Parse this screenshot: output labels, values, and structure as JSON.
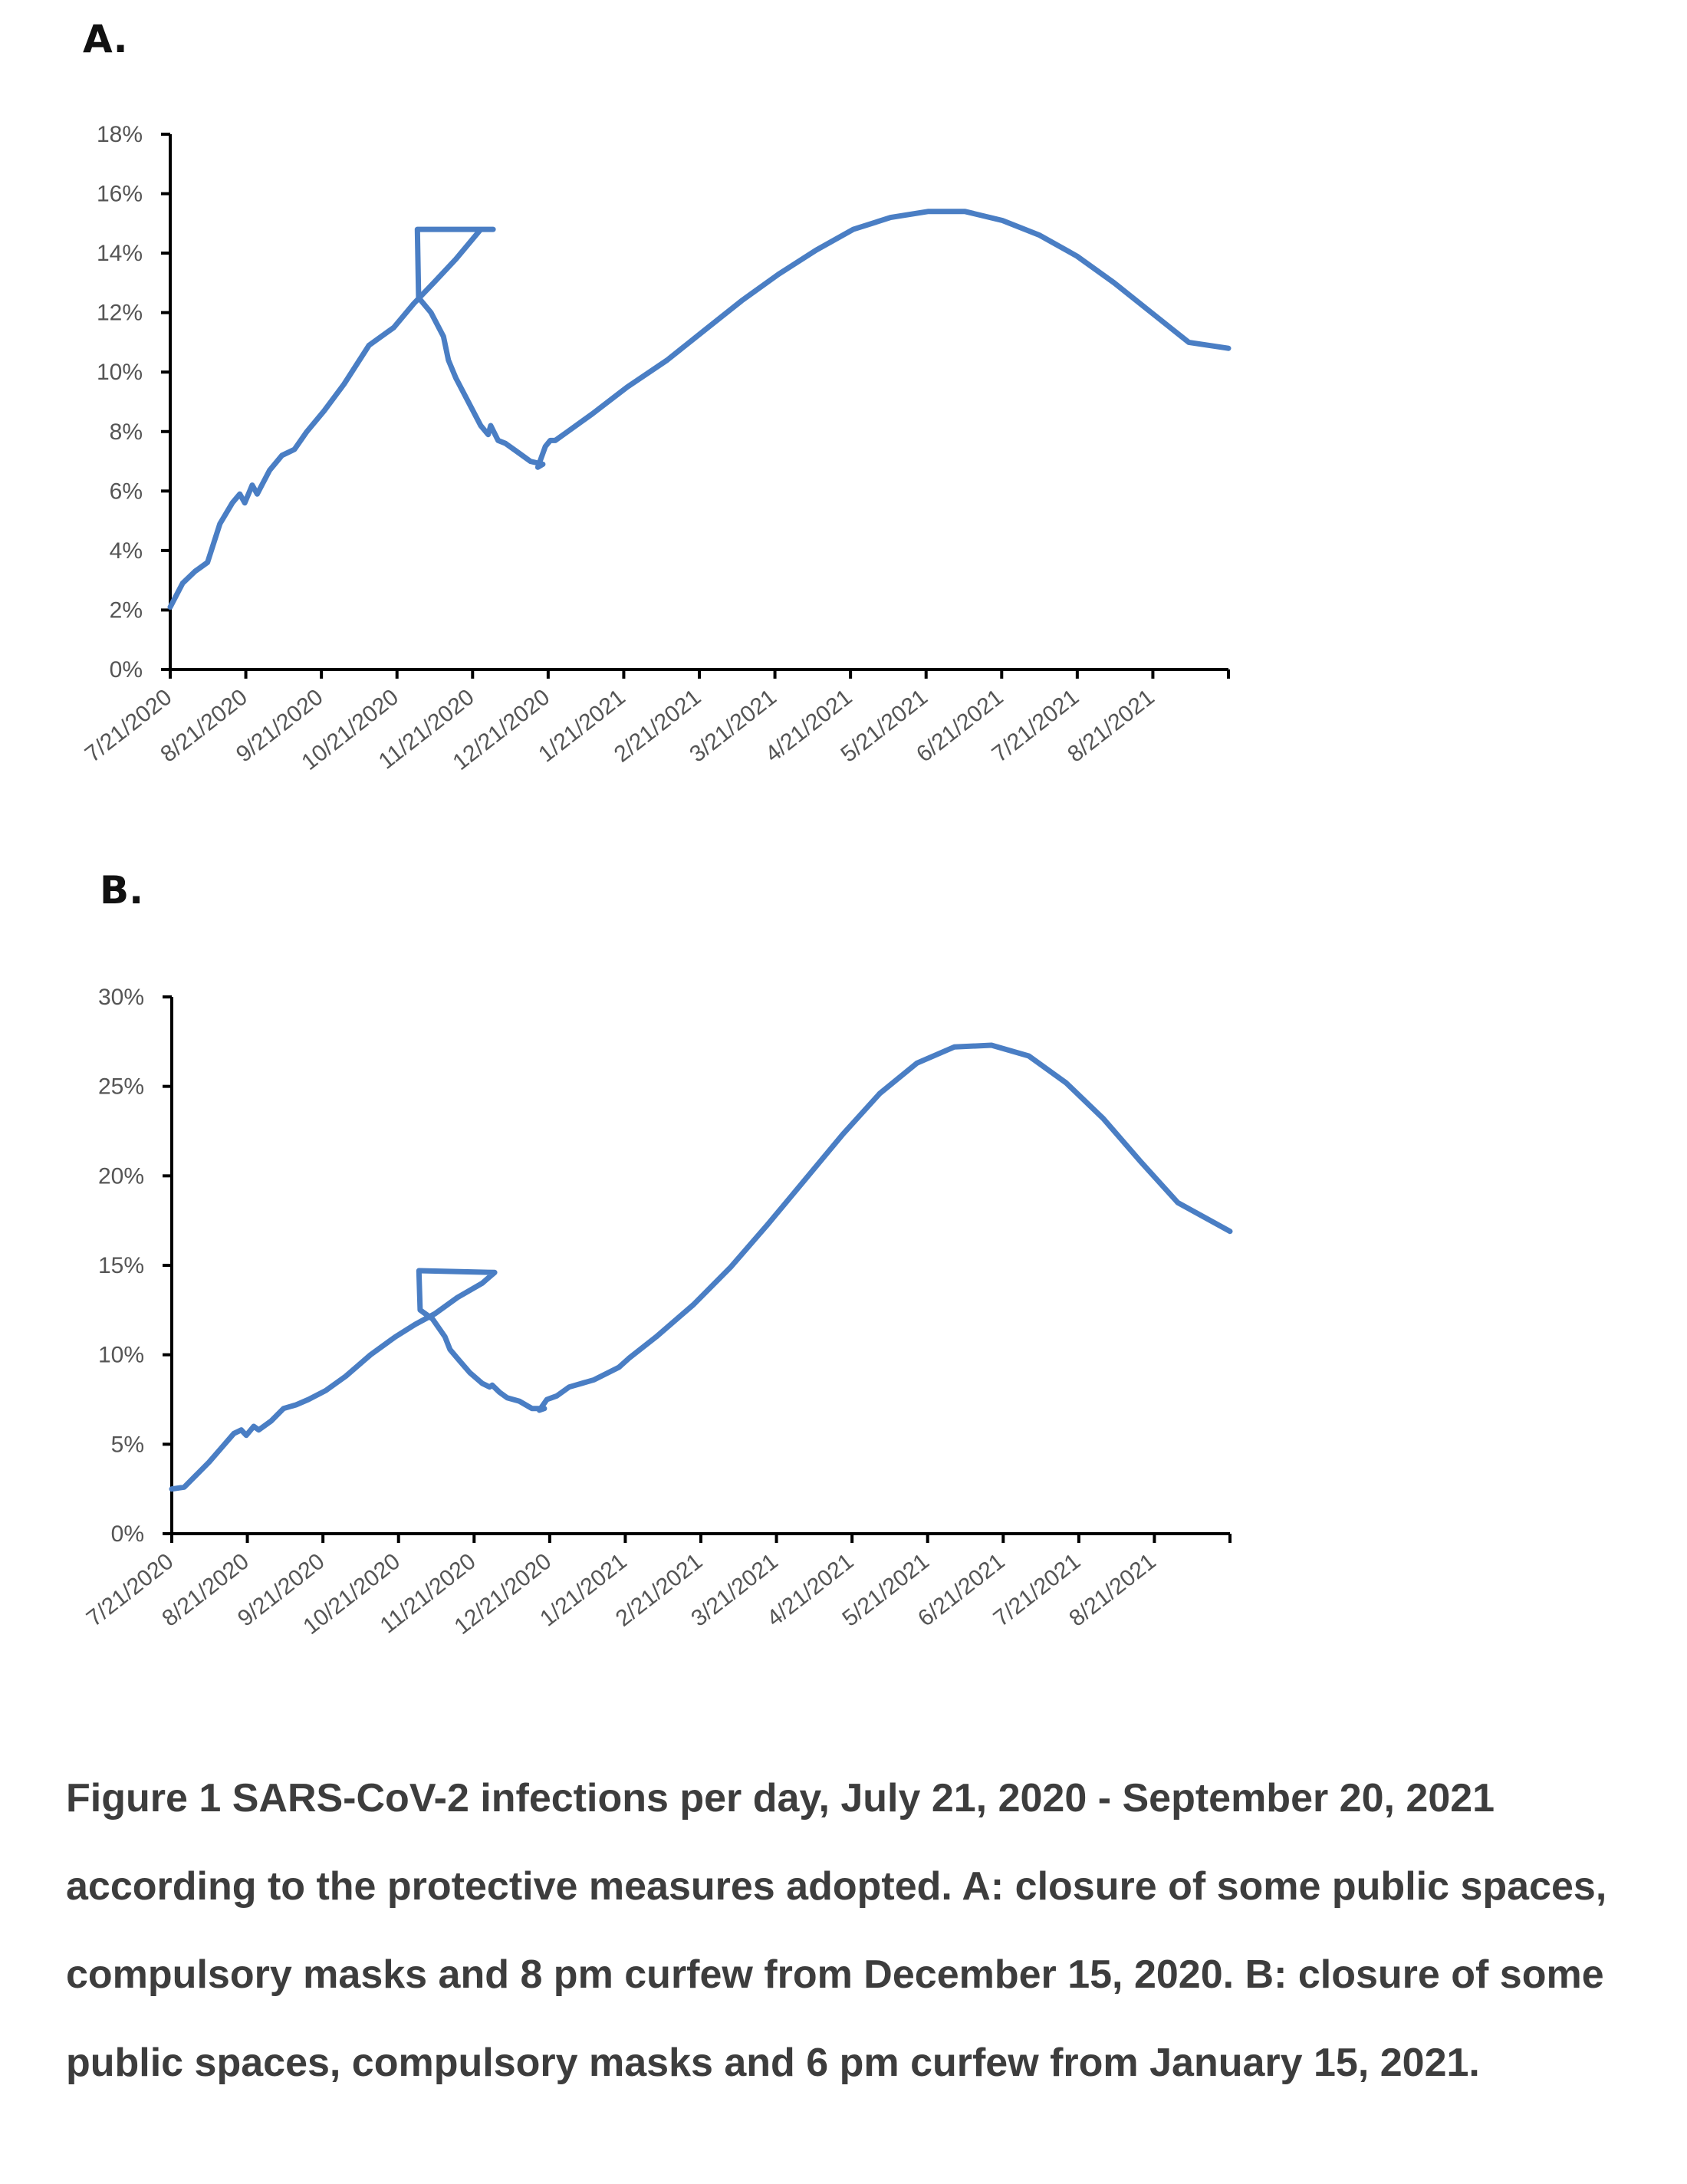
{
  "chart_data": [
    {
      "type": "line",
      "panel_label": "A.",
      "title": "",
      "xlabel": "",
      "ylabel": "",
      "ylim": [
        0,
        18
      ],
      "y_ticks": [
        "0%",
        "2%",
        "4%",
        "6%",
        "8%",
        "10%",
        "12%",
        "14%",
        "16%",
        "18%"
      ],
      "x_ticks": [
        "7/21/2020",
        "8/21/2020",
        "9/21/2020",
        "10/21/2020",
        "11/21/2020",
        "12/21/2020",
        "1/21/2021",
        "2/21/2021",
        "3/21/2021",
        "4/21/2021",
        "5/21/2021",
        "6/21/2021",
        "7/21/2021",
        "8/21/2021"
      ],
      "x_unit": "days since 7/21/2020",
      "xlim": [
        0,
        426
      ],
      "grid": false,
      "series": [
        {
          "name": "Infections per day (%)",
          "color": "#4a7ec4",
          "x": [
            0,
            5,
            10,
            15,
            20,
            25,
            28,
            30,
            33,
            35,
            40,
            45,
            50,
            55,
            62,
            70,
            80,
            90,
            98,
            106,
            115,
            125,
            130,
            99.5,
            100,
            102,
            105,
            110,
            112,
            115,
            120,
            125,
            128,
            129,
            132,
            135,
            140,
            145,
            150,
            148,
            151,
            153,
            155,
            160,
            170,
            184,
            200,
            215,
            230,
            245,
            260,
            275,
            290,
            305,
            320,
            335,
            350,
            365,
            380,
            395,
            410,
            426
          ],
          "y": [
            2.1,
            2.9,
            3.3,
            3.6,
            4.9,
            5.6,
            5.9,
            5.6,
            6.2,
            5.9,
            6.7,
            7.2,
            7.4,
            8.0,
            8.7,
            9.6,
            10.9,
            11.5,
            12.3,
            13.0,
            13.8,
            14.8,
            14.8,
            14.8,
            12.5,
            12.3,
            12.0,
            11.2,
            10.4,
            9.8,
            9.0,
            8.2,
            7.9,
            8.2,
            7.7,
            7.6,
            7.3,
            7.0,
            6.9,
            6.8,
            7.5,
            7.7,
            7.7,
            8.0,
            8.6,
            9.5,
            10.4,
            11.4,
            12.4,
            13.3,
            14.1,
            14.8,
            15.2,
            15.4,
            15.4,
            15.1,
            14.6,
            13.9,
            13.0,
            12.0,
            11.0,
            10.8
          ]
        }
      ]
    },
    {
      "type": "line",
      "panel_label": "B.",
      "title": "",
      "xlabel": "",
      "ylabel": "",
      "ylim": [
        0,
        30
      ],
      "y_ticks": [
        "0%",
        "5%",
        "10%",
        "15%",
        "20%",
        "25%",
        "30%"
      ],
      "x_ticks": [
        "7/21/2020",
        "8/21/2020",
        "9/21/2020",
        "10/21/2020",
        "11/21/2020",
        "12/21/2020",
        "1/21/2021",
        "2/21/2021",
        "3/21/2021",
        "4/21/2021",
        "5/21/2021",
        "6/21/2021",
        "7/21/2021",
        "8/21/2021"
      ],
      "x_unit": "days since 7/21/2020",
      "xlim": [
        0,
        426
      ],
      "grid": false,
      "series": [
        {
          "name": "Infections per day (%)",
          "color": "#4a7ec4",
          "x": [
            0,
            5,
            10,
            15,
            20,
            25,
            28,
            30,
            33,
            35,
            40,
            45,
            50,
            55,
            62,
            70,
            80,
            90,
            98,
            106,
            115,
            125,
            130,
            99.5,
            100,
            102,
            105,
            110,
            112,
            115,
            120,
            125,
            128,
            129,
            132,
            135,
            140,
            145,
            150,
            148,
            151,
            153,
            155,
            160,
            170,
            180,
            184,
            195,
            210,
            225,
            240,
            255,
            270,
            285,
            300,
            315,
            330,
            345,
            360,
            375,
            390,
            405,
            426
          ],
          "y": [
            2.5,
            2.6,
            3.3,
            4.0,
            4.8,
            5.6,
            5.8,
            5.5,
            6.0,
            5.8,
            6.3,
            7.0,
            7.2,
            7.5,
            8.0,
            8.8,
            10.0,
            11.0,
            11.7,
            12.3,
            13.2,
            14.0,
            14.6,
            14.7,
            12.5,
            12.3,
            12.0,
            11.0,
            10.3,
            9.8,
            9.0,
            8.4,
            8.2,
            8.3,
            7.9,
            7.6,
            7.4,
            7.0,
            7.0,
            6.9,
            7.5,
            7.6,
            7.7,
            8.2,
            8.6,
            9.3,
            9.8,
            11.0,
            12.8,
            14.9,
            17.3,
            19.8,
            22.3,
            24.6,
            26.3,
            27.2,
            27.3,
            26.7,
            25.2,
            23.2,
            20.8,
            18.5,
            16.9
          ]
        }
      ]
    }
  ],
  "labels": {
    "panel_a": "A.",
    "panel_b": "B."
  },
  "caption": "Figure 1 SARS-CoV-2 infections per day, July 21, 2020 - September 20, 2021 according to the protective measures adopted. A: closure of some public spaces, compulsory masks and 8 pm curfew from December 15, 2020. B: closure of some public spaces, compulsory masks and 6 pm curfew from January 15, 2021."
}
